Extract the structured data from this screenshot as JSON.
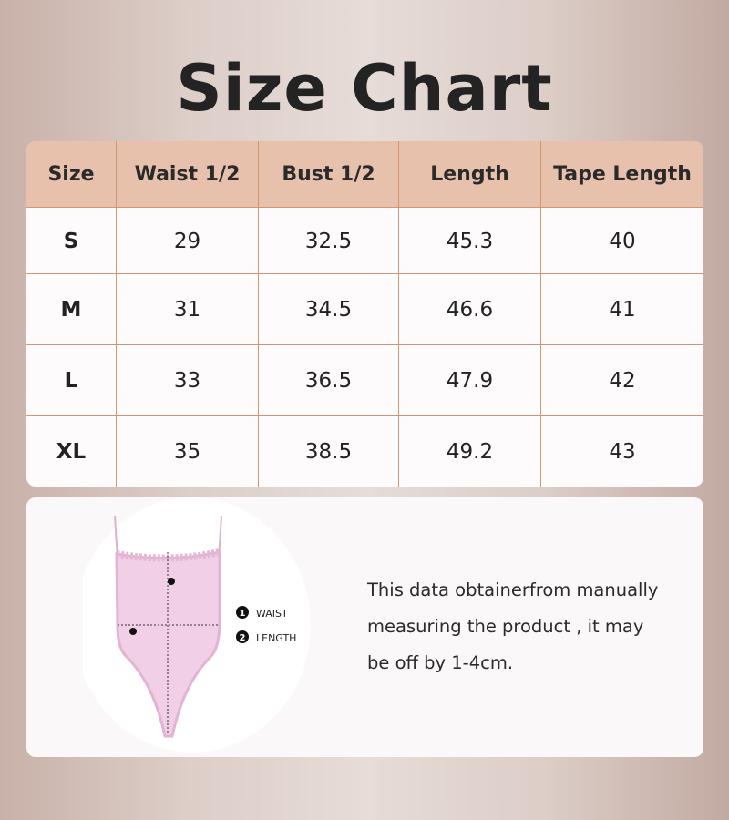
{
  "title": "Size Chart",
  "table": {
    "headers": [
      "Size",
      "Waist 1/2",
      "Bust 1/2",
      "Length",
      "Tape Length"
    ],
    "rows": [
      [
        "S",
        "29",
        "32.5",
        "45.3",
        "40"
      ],
      [
        "M",
        "31",
        "34.5",
        "46.6",
        "41"
      ],
      [
        "L",
        "33",
        "36.5",
        "47.9",
        "42"
      ],
      [
        "XL",
        "35",
        "38.5",
        "49.2",
        "43"
      ]
    ]
  },
  "illustration": {
    "legend": [
      {
        "number": "1",
        "label": "WAIST"
      },
      {
        "number": "2",
        "label": "LENGTH"
      }
    ]
  },
  "note": {
    "lines": [
      "This data obtainerfrom manually",
      "measuring the product , it may",
      "be off by 1-4cm."
    ]
  },
  "colors": {
    "header": "#e8c1ad",
    "grid": "#d09572",
    "garment": "#f1cfe6"
  }
}
